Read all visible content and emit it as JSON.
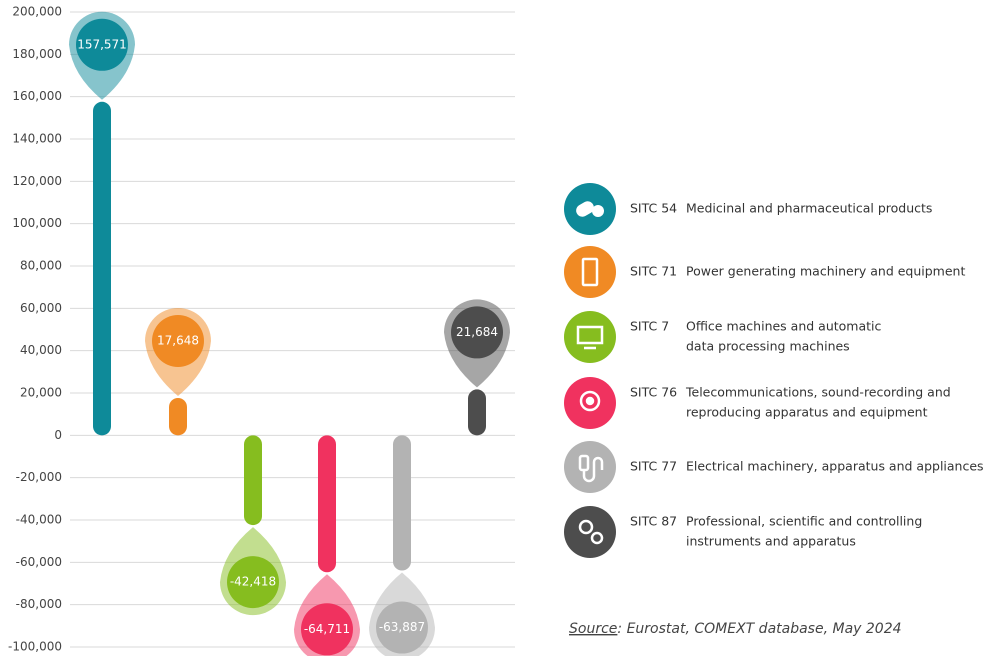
{
  "chart_data": {
    "type": "bar",
    "categories": [
      "SITC 54",
      "SITC 71",
      "SITC 7",
      "SITC 76",
      "SITC 77",
      "SITC 87"
    ],
    "descriptions": [
      [
        "Medicinal and pharmaceutical products"
      ],
      [
        "Power generating machinery and equipment"
      ],
      [
        "Office machines and automatic",
        "data processing machines"
      ],
      [
        "Telecommunications, sound-recording and",
        "reproducing apparatus and equipment"
      ],
      [
        "Electrical machinery, apparatus and appliances"
      ],
      [
        "Professional, scientific and controlling",
        "instruments and apparatus"
      ]
    ],
    "values": [
      157571,
      17648,
      -42418,
      -64711,
      -63887,
      21684
    ],
    "value_labels": [
      "157,571",
      "17,648",
      "-42,418",
      "-64,711",
      "-63,887",
      "21,684"
    ],
    "colors": [
      "#0e8a99",
      "#f08a24",
      "#86bd1f",
      "#f0325f",
      "#b3b3b3",
      "#4d4d4d"
    ],
    "ylim": [
      -100000,
      200000
    ],
    "yticks": [
      {
        "value": -100000,
        "label": "-100,000"
      },
      {
        "value": -80000,
        "label": "-80,000"
      },
      {
        "value": -60000,
        "label": "-60,000"
      },
      {
        "value": -40000,
        "label": "-40,000"
      },
      {
        "value": -20000,
        "label": "-20,000"
      },
      0,
      {
        "value": 20000,
        "label": "20,000"
      },
      {
        "value": 40000,
        "label": "40,000"
      },
      {
        "value": 60000,
        "label": "60,000"
      },
      {
        "value": 80000,
        "label": "80,000"
      },
      {
        "value": 100000,
        "label": "100,000"
      },
      {
        "value": 120000,
        "label": "120,000"
      },
      {
        "value": 140000,
        "label": "140,000"
      },
      {
        "value": 160000,
        "label": "160,000"
      },
      {
        "value": 180000,
        "label": "180,000"
      },
      {
        "value": 200000,
        "label": "200,000"
      }
    ],
    "grid": true,
    "source_label": "Source",
    "source_text": ": Eurostat, COMEXT database, May 2024"
  }
}
